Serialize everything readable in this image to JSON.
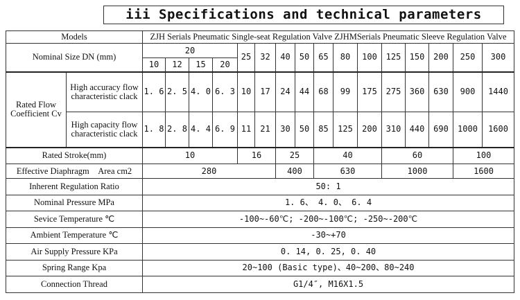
{
  "title": "iii Specifications and technical parameters",
  "models_label": "Models",
  "models_value": "ZJH Serials Pneumatic Single-seat Regulation Valve ZJHMSerials Pneumatic Sleeve Regulation Valve",
  "dn_label": "Nominal Size DN (mm)",
  "dn_group": "20",
  "dn_sub": [
    "10",
    "12",
    "15",
    "20"
  ],
  "dn_rest": [
    "25",
    "32",
    "40",
    "50",
    "65",
    "80",
    "100",
    "125",
    "150",
    "200",
    "250",
    "300"
  ],
  "cv_label": "Rated Flow Coefficient Cv",
  "cv_rows": [
    {
      "label": "High accuracy flow characteristic clack",
      "values": [
        "1. 6",
        "2. 5",
        "4. 0",
        "6. 3",
        "10",
        "17",
        "24",
        "44",
        "68",
        "99",
        "175",
        "275",
        "360",
        "630",
        "900",
        "1440"
      ]
    },
    {
      "label": "High capacity flow characteristic clack",
      "values": [
        "1. 8",
        "2. 8",
        "4. 4",
        "6. 9",
        "11",
        "21",
        "30",
        "50",
        "85",
        "125",
        "200",
        "310",
        "440",
        "690",
        "1000",
        "1600"
      ]
    }
  ],
  "stroke": {
    "label": "Rated Stroke(mm)",
    "values": [
      "10",
      "16",
      "25",
      "40",
      "60",
      "100"
    ]
  },
  "area": {
    "label": "Effective Diaphragm　Area cm2",
    "values": [
      "280",
      "400",
      "630",
      "1000",
      "1600"
    ]
  },
  "rows": [
    {
      "label": "Inherent Regulation Ratio",
      "value": "50: 1"
    },
    {
      "label": "Nominal Pressure MPa",
      "value": "1. 6、 4. 0、 6. 4"
    },
    {
      "label": "Sevice Temperature ℃",
      "value": "-100~-60℃; -200~-100℃; -250~-200℃"
    },
    {
      "label": "Ambient Temperature ℃",
      "value": "-30~+70"
    },
    {
      "label": "Air Supply Pressure KPa",
      "value": "0. 14, 0. 25, 0. 40"
    },
    {
      "label": "Spring Range Kpa",
      "value": "20~100 (Basic type)、40~200、80~240"
    },
    {
      "label": "Connection Thread",
      "value": "G1/4″, M16X1.5"
    }
  ]
}
